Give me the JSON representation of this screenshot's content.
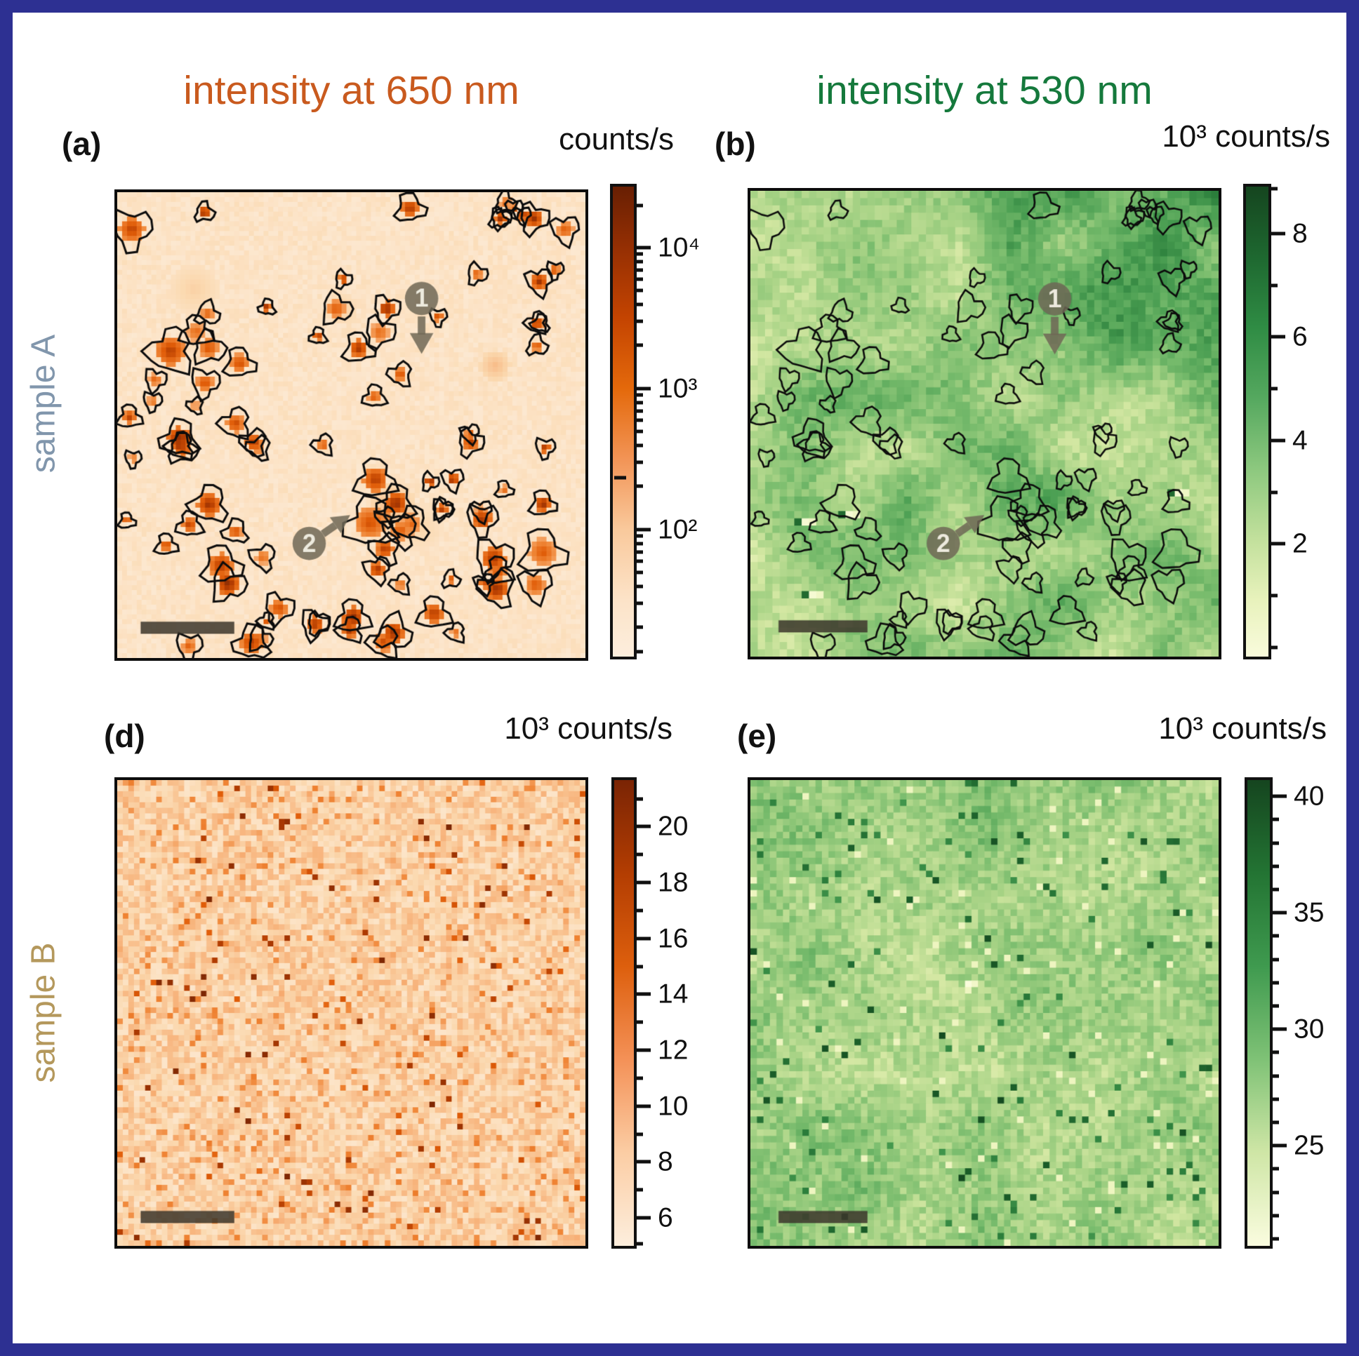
{
  "figure": {
    "border_color": "#2d3092",
    "background": "#ffffff",
    "column_titles": [
      {
        "text": "intensity at 650 nm",
        "color": "#c95a1e"
      },
      {
        "text": "intensity at 530 nm",
        "color": "#15793c"
      }
    ],
    "row_labels": [
      {
        "text": "sample A",
        "color": "#8196ac"
      },
      {
        "text": "sample B",
        "color": "#b4985c"
      }
    ]
  },
  "colormaps": {
    "orange": [
      [
        0,
        "#fdf0e2"
      ],
      [
        0.15,
        "#fbd9b0"
      ],
      [
        0.3,
        "#f7b077"
      ],
      [
        0.45,
        "#ef8434"
      ],
      [
        0.6,
        "#e05c08"
      ],
      [
        0.75,
        "#b33d02"
      ],
      [
        0.88,
        "#8c2d04"
      ],
      [
        1,
        "#6f2104"
      ]
    ],
    "green": [
      [
        0,
        "#fafcdc"
      ],
      [
        0.12,
        "#eef5c0"
      ],
      [
        0.25,
        "#d3e7a2"
      ],
      [
        0.4,
        "#a8d386"
      ],
      [
        0.55,
        "#77bb6c"
      ],
      [
        0.7,
        "#4a9e52"
      ],
      [
        0.82,
        "#2c7f3c"
      ],
      [
        0.92,
        "#1a5c28"
      ],
      [
        1,
        "#123f1c"
      ]
    ]
  },
  "map_texture": {
    "spots_seed": 7,
    "spot_count": 92
  },
  "chart_data": [
    {
      "id": "a",
      "type": "heatmap",
      "panel_label": "(a)",
      "sample": "sample A",
      "wavelength_nm": 650,
      "units_label": "counts/s",
      "colorbar": {
        "scale": "log",
        "units": "counts/s",
        "approx_range": [
          40,
          25000
        ],
        "gradient": [
          [
            0,
            "#681f03"
          ],
          [
            0.13,
            "#952f03"
          ],
          [
            0.28,
            "#c44401"
          ],
          [
            0.43,
            "#e4690b"
          ],
          [
            0.58,
            "#f29456"
          ],
          [
            0.73,
            "#f9c99c"
          ],
          [
            0.88,
            "#fce3c8"
          ],
          [
            1,
            "#fdeedd"
          ]
        ],
        "major_ticks": [
          {
            "pct": 13,
            "label": "10⁴"
          },
          {
            "pct": 43,
            "label": "10³"
          },
          {
            "pct": 73,
            "label": "10²"
          }
        ],
        "minor_tick_pcts": [
          4,
          14.4,
          15.9,
          17.7,
          19.7,
          22.1,
          25,
          28.7,
          33.7,
          44.4,
          45.9,
          47.7,
          49.7,
          52.1,
          55,
          58.7,
          63.7,
          74.4,
          75.9,
          77.7,
          79.7,
          82.1,
          85,
          88.7,
          93.7,
          99
        ],
        "inbar_dash_pct": 62
      },
      "map": {
        "grid": 96,
        "seed": 11,
        "colormap": "orange",
        "style": "log-spots",
        "contours": true
      },
      "annotations": {
        "markers": [
          {
            "label": "1",
            "x": 0.65,
            "y": 0.228,
            "arrow": "down"
          },
          {
            "label": "2",
            "x": 0.41,
            "y": 0.754,
            "arrow": "up-right"
          }
        ],
        "scalebar": {
          "x": 0.05,
          "y": 0.922,
          "w": 0.2,
          "h": 0.026
        }
      }
    },
    {
      "id": "b",
      "type": "heatmap",
      "panel_label": "(b)",
      "sample": "sample A",
      "wavelength_nm": 530,
      "units_label": "10³ counts/s",
      "colorbar": {
        "scale": "linear",
        "units": "10³ counts/s",
        "approx_range": [
          0.9,
          9.3
        ],
        "gradient": [
          [
            0,
            "#15451f"
          ],
          [
            0.15,
            "#1e6830"
          ],
          [
            0.3,
            "#2f8c44"
          ],
          [
            0.45,
            "#55a85f"
          ],
          [
            0.6,
            "#8cc87e"
          ],
          [
            0.75,
            "#c2e09c"
          ],
          [
            0.88,
            "#e8f2bc"
          ],
          [
            1,
            "#f9fbdc"
          ]
        ],
        "major_ticks": [
          {
            "pct": 10,
            "label": "8"
          },
          {
            "pct": 32,
            "label": "6"
          },
          {
            "pct": 54,
            "label": "4"
          },
          {
            "pct": 76,
            "label": "2"
          }
        ],
        "minor_tick_pcts": [
          0.5,
          21,
          43,
          65,
          87,
          98
        ]
      },
      "map": {
        "grid": 64,
        "seed": 21,
        "colormap": "green",
        "style": "green-field-contours",
        "contours": true
      },
      "annotations": {
        "markers": [
          {
            "label": "1",
            "x": 0.65,
            "y": 0.232,
            "arrow": "down"
          },
          {
            "label": "2",
            "x": 0.412,
            "y": 0.757,
            "arrow": "up-right"
          }
        ],
        "scalebar": {
          "x": 0.06,
          "y": 0.922,
          "w": 0.19,
          "h": 0.026
        }
      }
    },
    {
      "id": "d",
      "type": "heatmap",
      "panel_label": "(d)",
      "sample": "sample B",
      "wavelength_nm": 650,
      "units_label": "10³ counts/s",
      "colorbar": {
        "scale": "linear",
        "units": "10³ counts/s",
        "approx_range": [
          5,
          21.5
        ],
        "gradient": [
          [
            0,
            "#7a2404"
          ],
          [
            0.2,
            "#b33d02"
          ],
          [
            0.4,
            "#dd5f0d"
          ],
          [
            0.6,
            "#f49157"
          ],
          [
            0.8,
            "#fbcda4"
          ],
          [
            1,
            "#fdeedd"
          ]
        ],
        "major_ticks": [
          {
            "pct": 10,
            "label": "20"
          },
          {
            "pct": 22,
            "label": "18"
          },
          {
            "pct": 34,
            "label": "16"
          },
          {
            "pct": 46,
            "label": "14"
          },
          {
            "pct": 58,
            "label": "12"
          },
          {
            "pct": 70,
            "label": "10"
          },
          {
            "pct": 82,
            "label": "8"
          },
          {
            "pct": 94,
            "label": "6"
          }
        ],
        "minor_tick_pcts": [
          4,
          16,
          28,
          40,
          52,
          64,
          76,
          88,
          99.5
        ]
      },
      "map": {
        "grid": 84,
        "seed": 31,
        "colormap": "orange",
        "style": "orange-speckle",
        "contours": false
      },
      "annotations": {
        "scalebar": {
          "x": 0.05,
          "y": 0.925,
          "w": 0.2,
          "h": 0.026
        }
      }
    },
    {
      "id": "e",
      "type": "heatmap",
      "panel_label": "(e)",
      "sample": "sample B",
      "wavelength_nm": 530,
      "units_label": "10³ counts/s",
      "colorbar": {
        "scale": "linear",
        "units": "10³ counts/s",
        "approx_range": [
          20.5,
          40.5
        ],
        "gradient": [
          [
            0,
            "#15451f"
          ],
          [
            0.2,
            "#237433"
          ],
          [
            0.4,
            "#3f9a4f"
          ],
          [
            0.6,
            "#7fc276"
          ],
          [
            0.8,
            "#cfe6a6"
          ],
          [
            1,
            "#fafcdf"
          ]
        ],
        "major_ticks": [
          {
            "pct": 3.5,
            "label": "40"
          },
          {
            "pct": 28.5,
            "label": "35"
          },
          {
            "pct": 53.5,
            "label": "30"
          },
          {
            "pct": 78.5,
            "label": "25"
          }
        ],
        "minor_tick_pcts": [
          8.5,
          13.5,
          18.5,
          23.5,
          33.5,
          38.5,
          43.5,
          48.5,
          58.5,
          63.5,
          68.5,
          73.5,
          83.5,
          88.5,
          93.5,
          98.5
        ]
      },
      "map": {
        "grid": 72,
        "seed": 41,
        "colormap": "green",
        "style": "green-speckle",
        "contours": false,
        "anomalies": [
          {
            "x": 0.46,
            "y": 0.44
          }
        ]
      },
      "annotations": {
        "scalebar": {
          "x": 0.06,
          "y": 0.925,
          "w": 0.19,
          "h": 0.026
        }
      }
    }
  ]
}
